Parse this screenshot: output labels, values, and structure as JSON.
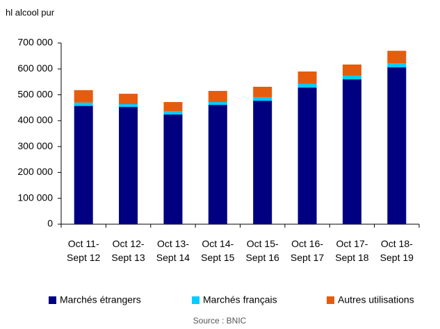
{
  "chart_data": {
    "type": "stacked-bar",
    "y_axis_label": "hl alcool pur",
    "source": "Source : BNIC",
    "categories": [
      "Oct 11- Sept 12",
      "Oct 12- Sept 13",
      "Oct 13- Sept 14",
      "Oct 14- Sept 15",
      "Oct 15- Sept 16",
      "Oct 16- Sept 17",
      "Oct 17- Sept 18",
      "Oct 18- Sept 19"
    ],
    "series": [
      {
        "name": "Marchés étrangers",
        "color": "#000080",
        "values": [
          457000,
          453000,
          424000,
          461000,
          477000,
          528000,
          560000,
          606000
        ]
      },
      {
        "name": "Marchés français",
        "color": "#00ccff",
        "values": [
          13000,
          11000,
          13000,
          11000,
          14000,
          14000,
          14000,
          16000
        ]
      },
      {
        "name": "Autres utilisations",
        "color": "#e65c0f",
        "values": [
          48000,
          40000,
          35000,
          43000,
          40000,
          48000,
          43000,
          48000
        ]
      }
    ],
    "ylim": [
      0,
      700000
    ],
    "yticks": [
      0,
      {
        "value": 100000,
        "label": "100 000"
      },
      {
        "value": 200000,
        "label": "200 000"
      },
      {
        "value": 300000,
        "label": "300 000"
      },
      {
        "value": 400000,
        "label": "400 000"
      },
      {
        "value": 500000,
        "label": "500 000"
      },
      {
        "value": 600000,
        "label": "600 000"
      },
      {
        "value": 700000,
        "label": "700 000"
      }
    ],
    "legend": "bottom"
  }
}
